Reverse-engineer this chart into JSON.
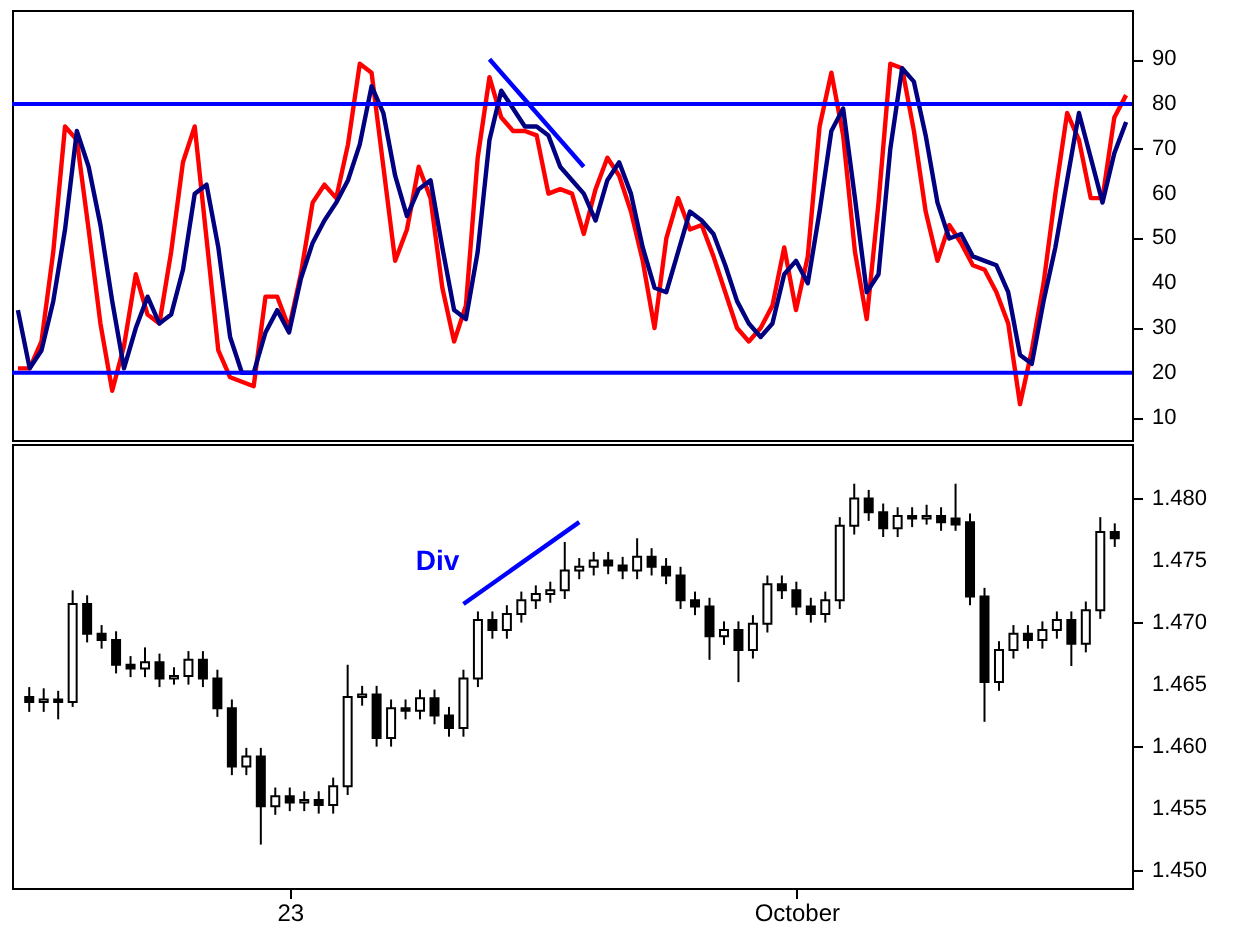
{
  "chart_data": [
    {
      "type": "line",
      "ylim": [
        5,
        101
      ],
      "yticks": [
        10,
        20,
        30,
        40,
        50,
        60,
        70,
        80,
        90
      ],
      "tick_labels": "y",
      "grid": false,
      "categories": [
        null,
        null,
        null,
        null,
        null,
        null,
        null,
        null,
        null,
        null,
        null,
        null,
        null,
        null,
        null,
        null,
        null,
        null,
        null,
        null,
        null,
        null,
        null,
        null,
        null,
        null,
        null,
        null,
        null,
        null,
        null,
        null,
        null,
        null,
        null,
        null,
        null,
        null,
        null,
        null,
        null,
        null,
        null,
        null,
        null,
        null,
        null,
        null,
        null,
        null,
        null,
        null,
        null,
        null,
        null,
        null,
        null,
        null,
        null,
        null,
        null,
        null,
        null,
        null,
        null,
        null,
        null,
        null,
        null,
        null,
        null,
        null,
        null,
        null,
        null,
        null,
        null,
        null,
        null,
        null,
        null,
        null,
        null,
        null,
        null,
        null,
        null,
        null,
        null,
        null,
        null,
        null,
        null,
        null,
        null
      ],
      "ref_lines": [
        {
          "axis": "y",
          "value": 20,
          "color": "#0000ff"
        },
        {
          "axis": "y",
          "value": 80,
          "color": "#0000ff"
        }
      ],
      "series": [
        {
          "color": "#ff0000",
          "values": [
            21,
            21,
            27,
            47,
            75,
            72,
            52,
            31,
            16,
            26,
            42,
            33,
            31,
            47,
            67,
            75,
            50,
            25,
            19,
            18,
            17,
            37,
            37,
            30,
            42,
            58,
            62,
            59,
            71,
            89,
            87,
            66,
            45,
            52,
            66,
            59,
            39,
            27,
            35,
            68,
            86,
            77,
            74,
            74,
            73,
            60,
            61,
            60,
            51,
            61,
            68,
            64,
            56,
            45,
            30,
            50,
            59,
            52,
            53,
            46,
            38,
            30,
            27,
            30,
            35,
            48,
            34,
            46,
            75,
            87,
            73,
            47,
            32,
            58,
            89,
            88,
            74,
            56,
            45,
            53,
            49,
            44,
            43,
            38,
            31,
            13,
            25,
            40,
            60,
            78,
            72,
            59,
            59,
            77,
            82
          ]
        },
        {
          "color": "#000080",
          "values": [
            34,
            21,
            25,
            36,
            52,
            74,
            66,
            53,
            36,
            21,
            30,
            37,
            31,
            33,
            43,
            60,
            62,
            48,
            28,
            20,
            20,
            29,
            34,
            29,
            41,
            49,
            54,
            58,
            63,
            71,
            84,
            78,
            64,
            55,
            61,
            63,
            48,
            34,
            32,
            47,
            72,
            83,
            79,
            75,
            75,
            73,
            66,
            63,
            60,
            54,
            63,
            67,
            60,
            48,
            39,
            38,
            47,
            56,
            54,
            51,
            44,
            36,
            31,
            28,
            31,
            42,
            45,
            40,
            56,
            74,
            79,
            59,
            38,
            42,
            70,
            88,
            85,
            73,
            58,
            50,
            51,
            46,
            45,
            44,
            38,
            24,
            22,
            36,
            48,
            63,
            78,
            68,
            58,
            69,
            76
          ]
        },
        {
          "type": "line",
          "color": "#0000ff",
          "values": [
            null,
            null,
            null,
            null,
            null,
            null,
            null,
            null,
            null,
            null,
            null,
            null,
            null,
            null,
            null,
            null,
            null,
            null,
            null,
            null,
            null,
            null,
            null,
            null,
            null,
            null,
            null,
            null,
            null,
            null,
            null,
            null,
            null,
            null,
            null,
            null,
            null,
            null,
            null,
            null,
            90,
            null,
            null,
            null,
            null,
            null,
            null,
            null,
            66,
            null,
            null,
            null,
            null,
            null,
            null,
            null,
            null,
            null,
            null,
            null,
            null,
            null,
            null,
            null,
            null,
            null,
            null,
            null,
            null,
            null,
            null,
            null,
            null,
            null,
            null,
            null,
            null,
            null,
            null,
            null,
            null,
            null,
            null,
            null,
            null,
            null,
            null,
            null,
            null,
            null,
            null,
            null,
            null,
            null,
            null
          ]
        }
      ]
    },
    {
      "type": "candlestick",
      "color": "#000000",
      "ylim": [
        1.4486,
        1.4844
      ],
      "yticks": [
        {
          "value": 1.45,
          "label": "1.450"
        },
        {
          "value": 1.455,
          "label": "1.455"
        },
        {
          "value": 1.46,
          "label": "1.460"
        },
        {
          "value": 1.465,
          "label": "1.465"
        },
        {
          "value": 1.47,
          "label": "1.470"
        },
        {
          "value": 1.475,
          "label": "1.475"
        },
        {
          "value": 1.48,
          "label": "1.480"
        }
      ],
      "grid": false,
      "categories": [
        null,
        null,
        null,
        null,
        null,
        null,
        null,
        null,
        null,
        null,
        null,
        null,
        null,
        null,
        null,
        null,
        null,
        null,
        "23",
        null,
        null,
        null,
        null,
        null,
        null,
        null,
        null,
        null,
        null,
        null,
        null,
        null,
        null,
        null,
        null,
        null,
        null,
        null,
        null,
        null,
        null,
        null,
        null,
        null,
        null,
        null,
        null,
        null,
        null,
        null,
        null,
        null,
        null,
        "October",
        null,
        null,
        null,
        null,
        null,
        null,
        null,
        null,
        null,
        null,
        null,
        null,
        null,
        null,
        null,
        null,
        null,
        null,
        null,
        null,
        null,
        null
      ],
      "ohlc": [
        [
          1.464,
          1.4648,
          1.4628,
          1.4636
        ],
        [
          1.4636,
          1.4647,
          1.4628,
          1.4638
        ],
        [
          1.4638,
          1.4645,
          1.4622,
          1.4636
        ],
        [
          1.4636,
          1.4726,
          1.4632,
          1.4715
        ],
        [
          1.4715,
          1.4722,
          1.4684,
          1.4691
        ],
        [
          1.4691,
          1.4698,
          1.4679,
          1.4686
        ],
        [
          1.4686,
          1.4693,
          1.4659,
          1.4666
        ],
        [
          1.4666,
          1.4673,
          1.4656,
          1.4663
        ],
        [
          1.4663,
          1.468,
          1.4656,
          1.4668
        ],
        [
          1.4668,
          1.4675,
          1.4648,
          1.4655
        ],
        [
          1.4655,
          1.4664,
          1.465,
          1.4657
        ],
        [
          1.4657,
          1.4677,
          1.465,
          1.467
        ],
        [
          1.467,
          1.4677,
          1.4648,
          1.4655
        ],
        [
          1.4655,
          1.4662,
          1.4624,
          1.4631
        ],
        [
          1.4631,
          1.4638,
          1.4577,
          1.4584
        ],
        [
          1.4584,
          1.4599,
          1.4577,
          1.4592
        ],
        [
          1.4592,
          1.4599,
          1.4521,
          1.4552
        ],
        [
          1.4552,
          1.4567,
          1.4545,
          1.456
        ],
        [
          1.456,
          1.4567,
          1.4548,
          1.4555
        ],
        [
          1.4555,
          1.4564,
          1.4548,
          1.4557
        ],
        [
          1.4557,
          1.4564,
          1.4546,
          1.4553
        ],
        [
          1.4553,
          1.4575,
          1.4546,
          1.4568
        ],
        [
          1.4568,
          1.4666,
          1.4561,
          1.464
        ],
        [
          1.464,
          1.4649,
          1.4633,
          1.4642
        ],
        [
          1.4642,
          1.4649,
          1.46,
          1.4607
        ],
        [
          1.4607,
          1.4638,
          1.46,
          1.4631
        ],
        [
          1.4631,
          1.4638,
          1.4622,
          1.4629
        ],
        [
          1.4629,
          1.4646,
          1.4622,
          1.4639
        ],
        [
          1.4639,
          1.4646,
          1.4618,
          1.4625
        ],
        [
          1.4625,
          1.4632,
          1.4608,
          1.4615
        ],
        [
          1.4615,
          1.4662,
          1.4608,
          1.4655
        ],
        [
          1.4655,
          1.4709,
          1.4648,
          1.4702
        ],
        [
          1.4702,
          1.4709,
          1.4687,
          1.4694
        ],
        [
          1.4694,
          1.4714,
          1.4687,
          1.4707
        ],
        [
          1.4707,
          1.4725,
          1.47,
          1.4718
        ],
        [
          1.4718,
          1.473,
          1.4711,
          1.4723
        ],
        [
          1.4723,
          1.4733,
          1.4716,
          1.4726
        ],
        [
          1.4726,
          1.4765,
          1.4719,
          1.4742
        ],
        [
          1.4742,
          1.4752,
          1.4735,
          1.4745
        ],
        [
          1.4745,
          1.4757,
          1.4738,
          1.475
        ],
        [
          1.475,
          1.4757,
          1.4739,
          1.4746
        ],
        [
          1.4746,
          1.4753,
          1.4735,
          1.4742
        ],
        [
          1.4742,
          1.4768,
          1.4735,
          1.4753
        ],
        [
          1.4753,
          1.476,
          1.4738,
          1.4745
        ],
        [
          1.4745,
          1.4752,
          1.4731,
          1.4738
        ],
        [
          1.4738,
          1.4745,
          1.4711,
          1.4718
        ],
        [
          1.4718,
          1.4725,
          1.4706,
          1.4713
        ],
        [
          1.4713,
          1.472,
          1.467,
          1.4689
        ],
        [
          1.4689,
          1.4701,
          1.4682,
          1.4694
        ],
        [
          1.4694,
          1.4701,
          1.4652,
          1.4678
        ],
        [
          1.4678,
          1.4706,
          1.4671,
          1.4699
        ],
        [
          1.4699,
          1.4738,
          1.4692,
          1.4731
        ],
        [
          1.4731,
          1.4738,
          1.4719,
          1.4726
        ],
        [
          1.4726,
          1.4733,
          1.4706,
          1.4713
        ],
        [
          1.4713,
          1.472,
          1.47,
          1.4707
        ],
        [
          1.4707,
          1.4725,
          1.47,
          1.4718
        ],
        [
          1.4718,
          1.4785,
          1.4711,
          1.4778
        ],
        [
          1.4778,
          1.4812,
          1.4771,
          1.48
        ],
        [
          1.48,
          1.4807,
          1.4782,
          1.4789
        ],
        [
          1.4789,
          1.4796,
          1.4769,
          1.4776
        ],
        [
          1.4776,
          1.4793,
          1.4769,
          1.4786
        ],
        [
          1.4786,
          1.4793,
          1.4777,
          1.4784
        ],
        [
          1.4784,
          1.4795,
          1.4779,
          1.4786
        ],
        [
          1.4786,
          1.4793,
          1.4774,
          1.4781
        ],
        [
          1.4784,
          1.4812,
          1.4774,
          1.4779
        ],
        [
          1.4781,
          1.4788,
          1.4714,
          1.4721
        ],
        [
          1.4721,
          1.4728,
          1.462,
          1.4652
        ],
        [
          1.4652,
          1.4685,
          1.4645,
          1.4678
        ],
        [
          1.4678,
          1.4698,
          1.4671,
          1.4691
        ],
        [
          1.4691,
          1.4698,
          1.4679,
          1.4686
        ],
        [
          1.4686,
          1.4701,
          1.4679,
          1.4694
        ],
        [
          1.4694,
          1.4709,
          1.4687,
          1.4702
        ],
        [
          1.4702,
          1.4709,
          1.4665,
          1.4683
        ],
        [
          1.4683,
          1.4717,
          1.4676,
          1.471
        ],
        [
          1.471,
          1.4785,
          1.4703,
          1.4773
        ],
        [
          1.4773,
          1.478,
          1.4761,
          1.4768
        ]
      ],
      "series": [
        {
          "type": "line",
          "color": "#0000ff",
          "values": [
            null,
            null,
            null,
            null,
            null,
            null,
            null,
            null,
            null,
            null,
            null,
            null,
            null,
            null,
            null,
            null,
            null,
            null,
            null,
            null,
            null,
            null,
            null,
            null,
            null,
            null,
            null,
            null,
            null,
            null,
            1.4715,
            null,
            null,
            null,
            null,
            null,
            null,
            null,
            1.4781,
            null,
            null,
            null,
            null,
            null,
            null,
            null,
            null,
            null,
            null,
            null,
            null,
            null,
            null,
            null,
            null,
            null,
            null,
            null,
            null,
            null,
            null,
            null,
            null,
            null,
            null,
            null,
            null,
            null,
            null,
            null,
            null,
            null,
            null,
            null,
            null,
            null
          ]
        }
      ],
      "annotations": [
        "Div"
      ]
    }
  ]
}
